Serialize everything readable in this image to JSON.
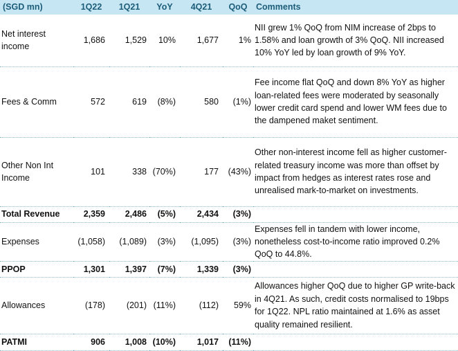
{
  "table": {
    "headers": {
      "label": "(SGD mn)",
      "q1_22": "1Q22",
      "q1_21": "1Q21",
      "yoy": "YoY",
      "q4_21": "4Q21",
      "qoq": "QoQ",
      "comments": "Comments"
    },
    "rows": [
      {
        "label": "Net interest income",
        "q1_22": "1,686",
        "q1_21": "1,529",
        "yoy": "10%",
        "q4_21": "1,677",
        "qoq": "1%",
        "comment": "NII grew 1% QoQ from NIM increase of 2bps to 1.58% and loan growth of 3% QoQ. NII increased 10% YoY led by loan growth of 9% YoY."
      },
      {
        "label": "Fees & Comm",
        "q1_22": "572",
        "q1_21": "619",
        "yoy": "(8%)",
        "q4_21": "580",
        "qoq": "(1%)",
        "comment": "Fee income flat QoQ and down 8% YoY as higher loan-related fees were moderated by seasonally lower credit card spend and lower WM fees due to the dampened maket sentiment."
      },
      {
        "label": "Other Non Int Income",
        "q1_22": "101",
        "q1_21": "338",
        "yoy": "(70%)",
        "q4_21": "177",
        "qoq": "(43%)",
        "comment": "Other non-interest income fell as higher customer-related treasury income was more than offset by impact from hedges as interest rates rose and unrealised mark-to-market on investments."
      },
      {
        "label": "Total Revenue",
        "q1_22": "2,359",
        "q1_21": "2,486",
        "yoy": "(5%)",
        "q4_21": "2,434",
        "qoq": "(3%)",
        "comment": ""
      },
      {
        "label": "Expenses",
        "q1_22": "(1,058)",
        "q1_21": "(1,089)",
        "yoy": "(3%)",
        "q4_21": "(1,095)",
        "qoq": "(3%)",
        "comment": "Expenses fell in tandem with lower income, nonetheless cost-to-income ratio improved 0.2% QoQ to 44.8%."
      },
      {
        "label": "PPOP",
        "q1_22": "1,301",
        "q1_21": "1,397",
        "yoy": "(7%)",
        "q4_21": "1,339",
        "qoq": "(3%)",
        "comment": ""
      },
      {
        "label": "Allowances",
        "q1_22": "(178)",
        "q1_21": "(201)",
        "yoy": "(11%)",
        "q4_21": "(112)",
        "qoq": "59%",
        "comment": "Allowances higher QoQ due to higher GP write-back in 4Q21. As such, credit costs normalised to 19bps for 1Q22. NPL ratio maintained at 1.6% as asset quality remained resilient."
      },
      {
        "label": "PATMI",
        "q1_22": "906",
        "q1_21": "1,008",
        "yoy": "(10%)",
        "q4_21": "1,017",
        "qoq": "(11%)",
        "comment": ""
      }
    ]
  },
  "colors": {
    "header_bg": "#c5e6f2",
    "header_text": "#1d5d7a",
    "row_divider": "#8ab8c9"
  }
}
